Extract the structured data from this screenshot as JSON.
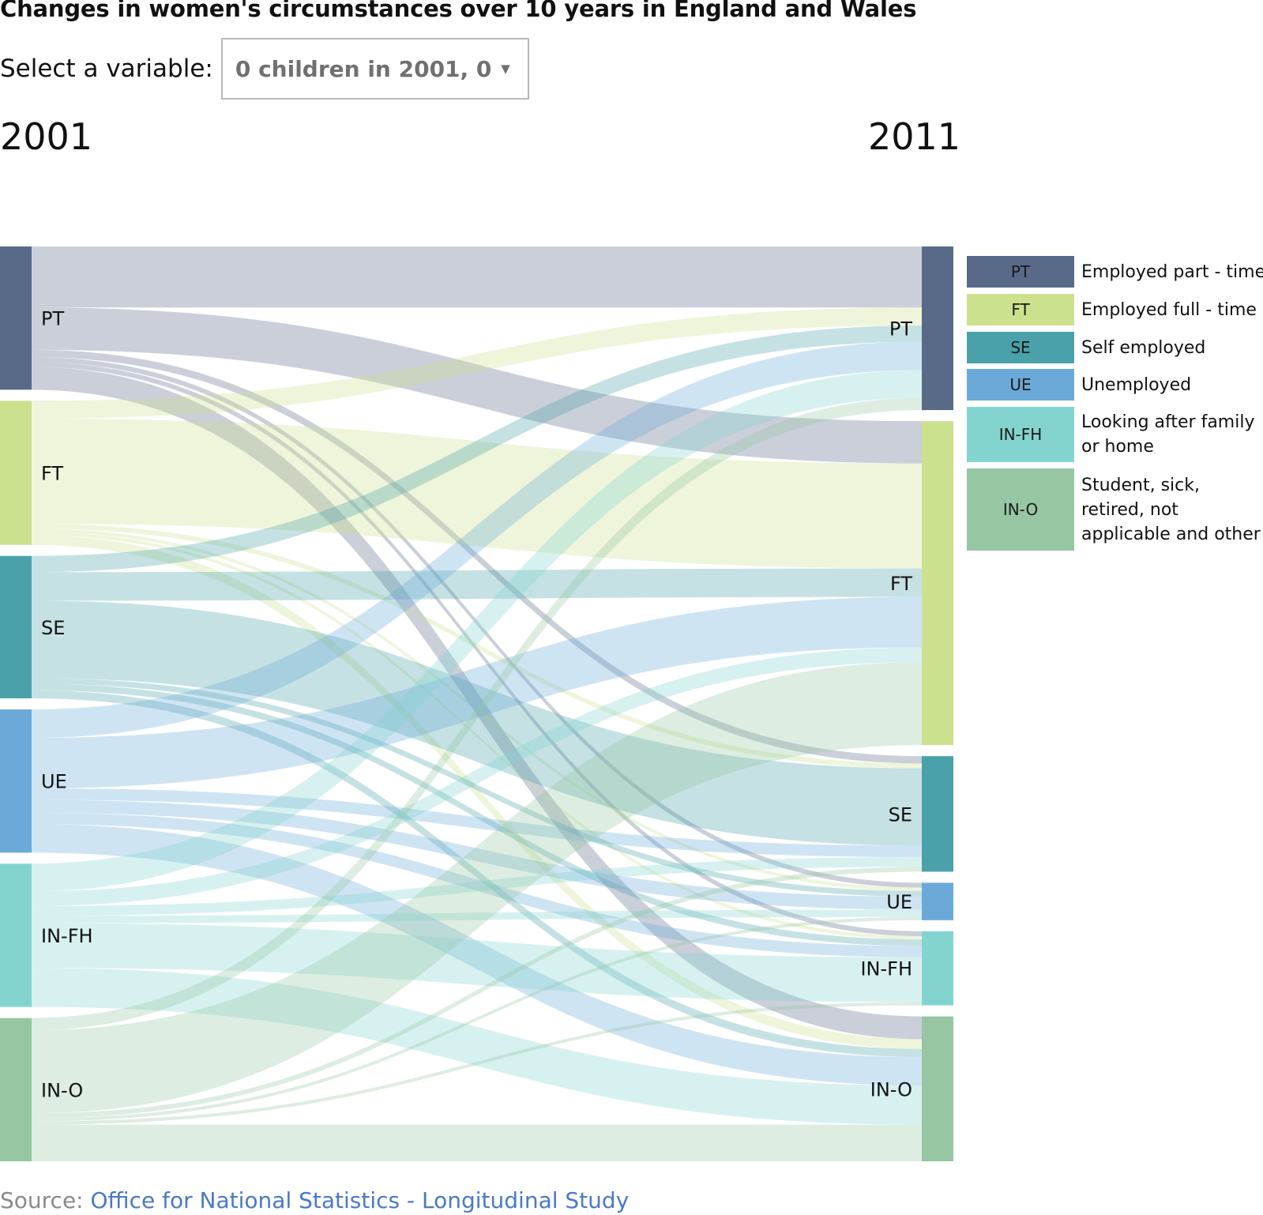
{
  "title": "Changes in women's circumstances over 10 years in England and Wales",
  "selector": {
    "label": "Select a variable:",
    "value": "0 children in 2001, 0 ..."
  },
  "years": {
    "left": "2001",
    "right": "2011"
  },
  "legend": [
    {
      "code": "PT",
      "label": "Employed part - time",
      "color": "#596a88"
    },
    {
      "code": "FT",
      "label": "Employed full - time",
      "color": "#cbe18e"
    },
    {
      "code": "SE",
      "label": "Self employed",
      "color": "#4aa1aa"
    },
    {
      "code": "UE",
      "label": "Unemployed",
      "color": "#6baad8"
    },
    {
      "code": "IN-FH",
      "label": "Looking after family or home",
      "color": "#83d4cf"
    },
    {
      "code": "IN-O",
      "label": "Student, sick, retired, not applicable and other",
      "color": "#96c7a2"
    }
  ],
  "chart_data": {
    "type": "sankey",
    "categories": [
      "PT",
      "FT",
      "SE",
      "UE",
      "IN-FH",
      "IN-O"
    ],
    "sources_2001": [
      "PT",
      "FT",
      "SE",
      "UE",
      "IN-FH",
      "IN-O"
    ],
    "targets_2011": [
      "PT",
      "FT",
      "SE",
      "UE",
      "IN-FH",
      "IN-O"
    ],
    "flows": [
      {
        "from": "PT",
        "to": "PT",
        "value": 75
      },
      {
        "from": "PT",
        "to": "FT",
        "value": 52
      },
      {
        "from": "PT",
        "to": "SE",
        "value": 9
      },
      {
        "from": "PT",
        "to": "UE",
        "value": 6
      },
      {
        "from": "PT",
        "to": "IN-FH",
        "value": 6
      },
      {
        "from": "PT",
        "to": "IN-O",
        "value": 28
      },
      {
        "from": "FT",
        "to": "PT",
        "value": 22
      },
      {
        "from": "FT",
        "to": "FT",
        "value": 129
      },
      {
        "from": "FT",
        "to": "SE",
        "value": 6
      },
      {
        "from": "FT",
        "to": "UE",
        "value": 4
      },
      {
        "from": "FT",
        "to": "IN-FH",
        "value": 4
      },
      {
        "from": "FT",
        "to": "IN-O",
        "value": 12
      },
      {
        "from": "SE",
        "to": "PT",
        "value": 20
      },
      {
        "from": "SE",
        "to": "FT",
        "value": 35
      },
      {
        "from": "SE",
        "to": "SE",
        "value": 95
      },
      {
        "from": "SE",
        "to": "UE",
        "value": 7
      },
      {
        "from": "SE",
        "to": "IN-FH",
        "value": 8
      },
      {
        "from": "SE",
        "to": "IN-O",
        "value": 10
      },
      {
        "from": "UE",
        "to": "PT",
        "value": 35
      },
      {
        "from": "UE",
        "to": "FT",
        "value": 62
      },
      {
        "from": "UE",
        "to": "SE",
        "value": 14
      },
      {
        "from": "UE",
        "to": "UE",
        "value": 16
      },
      {
        "from": "UE",
        "to": "IN-FH",
        "value": 14
      },
      {
        "from": "UE",
        "to": "IN-O",
        "value": 35
      },
      {
        "from": "IN-FH",
        "to": "PT",
        "value": 34
      },
      {
        "from": "IN-FH",
        "to": "FT",
        "value": 18
      },
      {
        "from": "IN-FH",
        "to": "SE",
        "value": 12
      },
      {
        "from": "IN-FH",
        "to": "UE",
        "value": 9
      },
      {
        "from": "IN-FH",
        "to": "IN-FH",
        "value": 55
      },
      {
        "from": "IN-FH",
        "to": "IN-O",
        "value": 48
      },
      {
        "from": "IN-O",
        "to": "PT",
        "value": 15
      },
      {
        "from": "IN-O",
        "to": "FT",
        "value": 102
      },
      {
        "from": "IN-O",
        "to": "SE",
        "value": 6
      },
      {
        "from": "IN-O",
        "to": "UE",
        "value": 4
      },
      {
        "from": "IN-O",
        "to": "IN-FH",
        "value": 4
      },
      {
        "from": "IN-O",
        "to": "IN-O",
        "value": 45
      }
    ]
  },
  "source": {
    "prefix": "Source:",
    "link_text": "Office for National Statistics - Longitudinal Study"
  }
}
